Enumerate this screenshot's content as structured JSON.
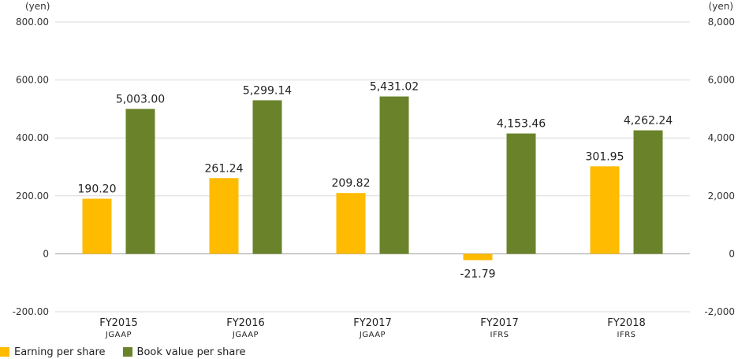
{
  "chart_data": {
    "type": "bar",
    "categories": [
      "FY2015",
      "FY2016",
      "FY2017",
      "FY2017",
      "FY2018"
    ],
    "category_sublabels": [
      "JGAAP",
      "JGAAP",
      "JGAAP",
      "IFRS",
      "IFRS"
    ],
    "series": [
      {
        "name": "Earning per share",
        "axis": "left",
        "color": "#FFBB00",
        "values": [
          190.2,
          261.24,
          209.82,
          -21.79,
          301.95
        ],
        "labels": [
          "190.20",
          "261.24",
          "209.82",
          "-21.79",
          "301.95"
        ]
      },
      {
        "name": "Book value per share",
        "axis": "right",
        "color": "#6A832B",
        "values": [
          5003.0,
          5299.14,
          5431.02,
          4153.46,
          4262.24
        ],
        "labels": [
          "5,003.00",
          "5,299.14",
          "5,431.02",
          "4,153.46",
          "4,262.24"
        ]
      }
    ],
    "y_left": {
      "unit": "(yen)",
      "ylim": [
        -200,
        800
      ],
      "ticks": [
        800,
        600,
        400,
        200,
        0,
        -200
      ],
      "tick_labels": [
        "800.00",
        "600.00",
        "400.00",
        "200.00",
        "0",
        "-200.00"
      ]
    },
    "y_right": {
      "unit": "(yen)",
      "ylim": [
        -2000,
        8000
      ],
      "ticks": [
        8000,
        6000,
        4000,
        2000,
        0,
        -2000
      ],
      "tick_labels": [
        "8,000",
        "6,000",
        "4,000",
        "2,000",
        "0",
        "-2,000"
      ]
    },
    "grid": true,
    "legend_position": "bottom-left"
  },
  "legend": {
    "eps_label": "Earning per share",
    "bvps_label": "Book value per share"
  },
  "colors": {
    "eps": "#FFBB00",
    "bvps": "#6A832B",
    "grid": "#D9D9D9",
    "baseline": "#999999"
  }
}
